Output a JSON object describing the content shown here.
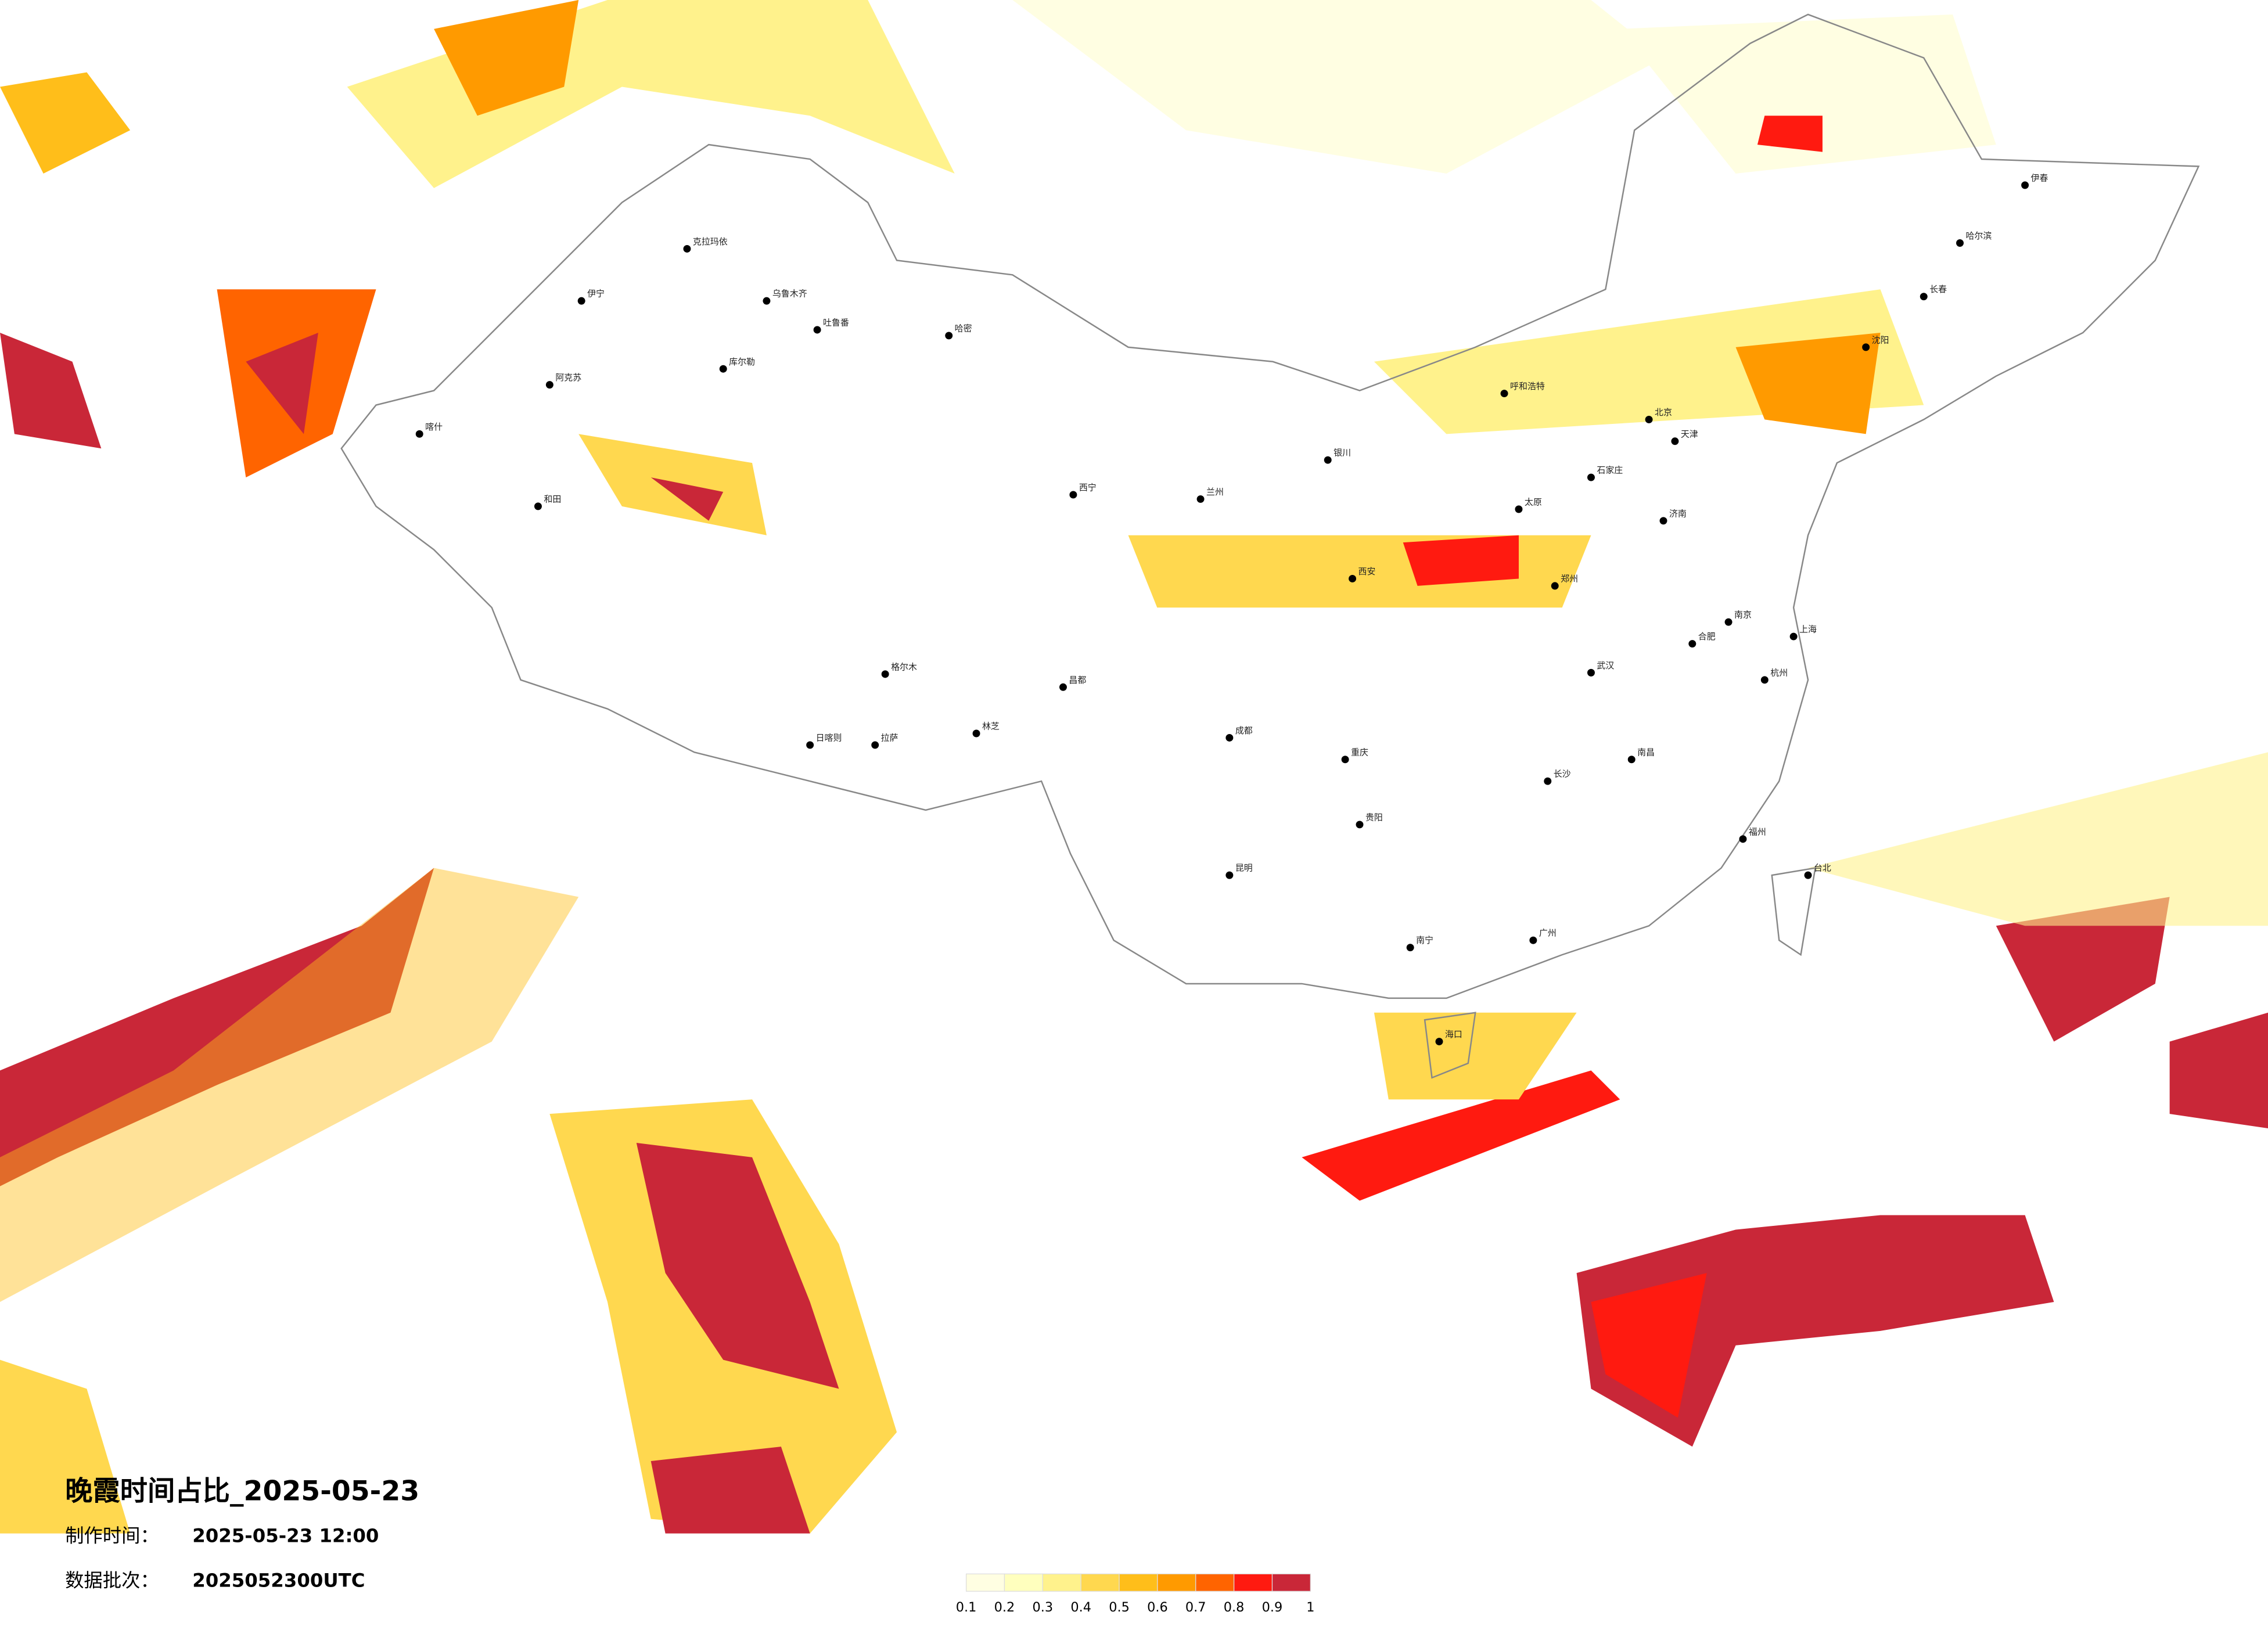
{
  "title": "晚霞时间占比_2025-05-23",
  "made_label": "制作时间：",
  "made_time": "2025-05-23 12:00",
  "batch_label": "数据批次：",
  "batch": "2025052300UTC",
  "legend": {
    "colors": [
      "#fffee2",
      "#ffffbe",
      "#fff28c",
      "#ffd84f",
      "#ffbe1a",
      "#ff9a00",
      "#ff6400",
      "#ff1a10",
      "#c92738"
    ],
    "ticks": [
      0.1,
      0.2,
      0.3,
      0.4,
      0.5,
      0.6,
      0.7,
      0.8,
      0.9,
      1
    ]
  },
  "cities": [
    "克拉玛依",
    "伊宁",
    "乌鲁木齐",
    "吐鲁番",
    "哈密",
    "阿克苏",
    "喀什",
    "和田",
    "库尔勒",
    "格尔木",
    "拉萨",
    "日喀则",
    "林芝",
    "昌都",
    "西宁",
    "兰州",
    "银川",
    "呼和浩特",
    "北京",
    "天津",
    "石家庄",
    "太原",
    "济南",
    "郑州",
    "西安",
    "成都",
    "重庆",
    "贵阳",
    "昆明",
    "南宁",
    "广州",
    "长沙",
    "武汉",
    "南昌",
    "杭州",
    "南京",
    "上海",
    "福州",
    "海口",
    "台北",
    "合肥",
    "沈阳",
    "长春",
    "哈尔滨",
    "伊春"
  ]
}
